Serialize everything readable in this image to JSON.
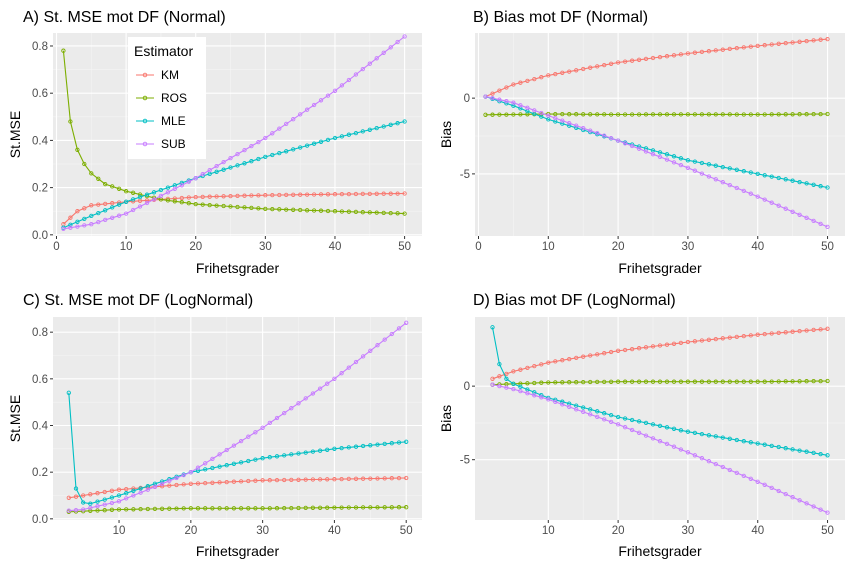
{
  "legend": {
    "title": "Estimator",
    "entries": [
      {
        "name": "KM",
        "color": "#F8766D"
      },
      {
        "name": "ROS",
        "color": "#7CAE00"
      },
      {
        "name": "MLE",
        "color": "#00BFC4"
      },
      {
        "name": "SUB",
        "color": "#C77CFF"
      }
    ]
  },
  "chart_data": [
    {
      "type": "line",
      "title": "A) St. MSE mot DF (Normal)",
      "xlabel": "Frihetsgrader",
      "ylabel": "St.MSE",
      "xlim": [
        -0.5,
        52.5
      ],
      "ylim": [
        -0.005,
        0.855
      ],
      "xticks": [
        0,
        10,
        20,
        30,
        40,
        50
      ],
      "xtick_labels": [
        "0",
        "10",
        "20",
        "30",
        "40",
        "50"
      ],
      "yticks": [
        0,
        0.2,
        0.4,
        0.6,
        0.8
      ],
      "ytick_labels": [
        "0.0",
        "0.2",
        "0.4",
        "0.6",
        "0.8"
      ],
      "x_range": [
        1,
        50
      ],
      "series": [
        {
          "name": "KM",
          "anchors": [
            [
              1,
              0.045
            ],
            [
              3,
              0.1
            ],
            [
              5,
              0.125
            ],
            [
              10,
              0.14
            ],
            [
              20,
              0.16
            ],
            [
              30,
              0.168
            ],
            [
              40,
              0.172
            ],
            [
              50,
              0.175
            ]
          ]
        },
        {
          "name": "ROS",
          "anchors": [
            [
              1,
              0.78
            ],
            [
              2,
              0.48
            ],
            [
              3,
              0.36
            ],
            [
              4,
              0.3
            ],
            [
              5,
              0.26
            ],
            [
              7,
              0.215
            ],
            [
              10,
              0.185
            ],
            [
              15,
              0.15
            ],
            [
              20,
              0.13
            ],
            [
              30,
              0.11
            ],
            [
              40,
              0.1
            ],
            [
              50,
              0.09
            ]
          ]
        },
        {
          "name": "MLE",
          "anchors": [
            [
              1,
              0.03
            ],
            [
              5,
              0.08
            ],
            [
              10,
              0.14
            ],
            [
              20,
              0.24
            ],
            [
              30,
              0.33
            ],
            [
              40,
              0.41
            ],
            [
              50,
              0.48
            ]
          ]
        },
        {
          "name": "SUB",
          "anchors": [
            [
              1,
              0.025
            ],
            [
              5,
              0.045
            ],
            [
              10,
              0.09
            ],
            [
              20,
              0.24
            ],
            [
              30,
              0.41
            ],
            [
              40,
              0.61
            ],
            [
              50,
              0.84
            ]
          ]
        }
      ]
    },
    {
      "type": "line",
      "title": "B) Bias mot DF (Normal)",
      "xlabel": "Frihetsgrader",
      "ylabel": "Bias",
      "xlim": [
        -0.5,
        52.5
      ],
      "ylim": [
        -9.1,
        4.3
      ],
      "xticks": [
        0,
        10,
        20,
        30,
        40,
        50
      ],
      "xtick_labels": [
        "0",
        "10",
        "20",
        "30",
        "40",
        "50"
      ],
      "yticks": [
        -5,
        0
      ],
      "ytick_labels": [
        "-5",
        "0"
      ],
      "x_range": [
        1,
        50
      ],
      "series": [
        {
          "name": "KM",
          "anchors": [
            [
              1,
              0.1
            ],
            [
              5,
              0.9
            ],
            [
              10,
              1.5
            ],
            [
              20,
              2.35
            ],
            [
              30,
              2.95
            ],
            [
              40,
              3.45
            ],
            [
              50,
              3.9
            ]
          ]
        },
        {
          "name": "ROS",
          "anchors": [
            [
              1,
              -1.1
            ],
            [
              10,
              -1.05
            ],
            [
              20,
              -1.08
            ],
            [
              30,
              -1.07
            ],
            [
              40,
              -1.08
            ],
            [
              50,
              -1.05
            ]
          ]
        },
        {
          "name": "MLE",
          "anchors": [
            [
              1,
              0.1
            ],
            [
              5,
              -0.5
            ],
            [
              10,
              -1.4
            ],
            [
              20,
              -2.8
            ],
            [
              30,
              -4.1
            ],
            [
              40,
              -5.0
            ],
            [
              50,
              -5.9
            ]
          ]
        },
        {
          "name": "SUB",
          "anchors": [
            [
              1,
              0.1
            ],
            [
              5,
              -0.3
            ],
            [
              10,
              -1.15
            ],
            [
              20,
              -2.8
            ],
            [
              30,
              -4.6
            ],
            [
              40,
              -6.5
            ],
            [
              50,
              -8.5
            ]
          ]
        }
      ]
    },
    {
      "type": "line",
      "title": "C) St. MSE mot DF (LogNormal)",
      "xlabel": "Frihetsgrader",
      "ylabel": "St.MSE",
      "xlim": [
        0.8,
        52.2
      ],
      "ylim": [
        -0.005,
        0.865
      ],
      "xticks": [
        10,
        20,
        30,
        40,
        50
      ],
      "xtick_labels": [
        "10",
        "20",
        "30",
        "40",
        "50"
      ],
      "yticks": [
        0,
        0.2,
        0.4,
        0.6,
        0.8
      ],
      "ytick_labels": [
        "0.0",
        "0.2",
        "0.4",
        "0.6",
        "0.8"
      ],
      "x_range": [
        3,
        50
      ],
      "series": [
        {
          "name": "KM",
          "anchors": [
            [
              3,
              0.09
            ],
            [
              6,
              0.105
            ],
            [
              10,
              0.125
            ],
            [
              20,
              0.15
            ],
            [
              30,
              0.165
            ],
            [
              40,
              0.17
            ],
            [
              50,
              0.175
            ]
          ]
        },
        {
          "name": "ROS",
          "anchors": [
            [
              3,
              0.03
            ],
            [
              10,
              0.04
            ],
            [
              20,
              0.045
            ],
            [
              30,
              0.045
            ],
            [
              40,
              0.048
            ],
            [
              50,
              0.05
            ]
          ]
        },
        {
          "name": "MLE",
          "anchors": [
            [
              3,
              0.54
            ],
            [
              4,
              0.13
            ],
            [
              5,
              0.07
            ],
            [
              6,
              0.065
            ],
            [
              10,
              0.1
            ],
            [
              20,
              0.2
            ],
            [
              30,
              0.26
            ],
            [
              40,
              0.3
            ],
            [
              50,
              0.33
            ]
          ]
        },
        {
          "name": "SUB",
          "anchors": [
            [
              3,
              0.035
            ],
            [
              5,
              0.04
            ],
            [
              10,
              0.075
            ],
            [
              20,
              0.2
            ],
            [
              30,
              0.39
            ],
            [
              40,
              0.6
            ],
            [
              50,
              0.84
            ]
          ]
        }
      ]
    },
    {
      "type": "line",
      "title": "D) Bias mot DF (LogNormal)",
      "xlabel": "Frihetsgrader",
      "ylabel": "Bias",
      "xlim": [
        -0.5,
        52.5
      ],
      "ylim": [
        -9.1,
        4.7
      ],
      "xticks": [
        10,
        20,
        30,
        40,
        50
      ],
      "xtick_labels": [
        "10",
        "20",
        "30",
        "40",
        "50"
      ],
      "yticks": [
        -5,
        0
      ],
      "ytick_labels": [
        "-5",
        "0"
      ],
      "x_range": [
        2,
        50
      ],
      "series": [
        {
          "name": "KM",
          "anchors": [
            [
              2,
              0.5
            ],
            [
              5,
              1.0
            ],
            [
              10,
              1.6
            ],
            [
              20,
              2.4
            ],
            [
              30,
              3.0
            ],
            [
              40,
              3.5
            ],
            [
              50,
              3.9
            ]
          ]
        },
        {
          "name": "ROS",
          "anchors": [
            [
              2,
              0.1
            ],
            [
              10,
              0.25
            ],
            [
              20,
              0.3
            ],
            [
              30,
              0.3
            ],
            [
              40,
              0.3
            ],
            [
              50,
              0.35
            ]
          ]
        },
        {
          "name": "MLE",
          "anchors": [
            [
              2,
              4.0
            ],
            [
              3,
              1.5
            ],
            [
              4,
              0.5
            ],
            [
              5,
              0.15
            ],
            [
              10,
              -0.8
            ],
            [
              20,
              -2.1
            ],
            [
              30,
              -3.1
            ],
            [
              40,
              -3.9
            ],
            [
              50,
              -4.7
            ]
          ]
        },
        {
          "name": "SUB",
          "anchors": [
            [
              2,
              0.1
            ],
            [
              5,
              -0.2
            ],
            [
              10,
              -0.9
            ],
            [
              20,
              -2.6
            ],
            [
              30,
              -4.5
            ],
            [
              40,
              -6.5
            ],
            [
              50,
              -8.6
            ]
          ]
        }
      ]
    }
  ]
}
